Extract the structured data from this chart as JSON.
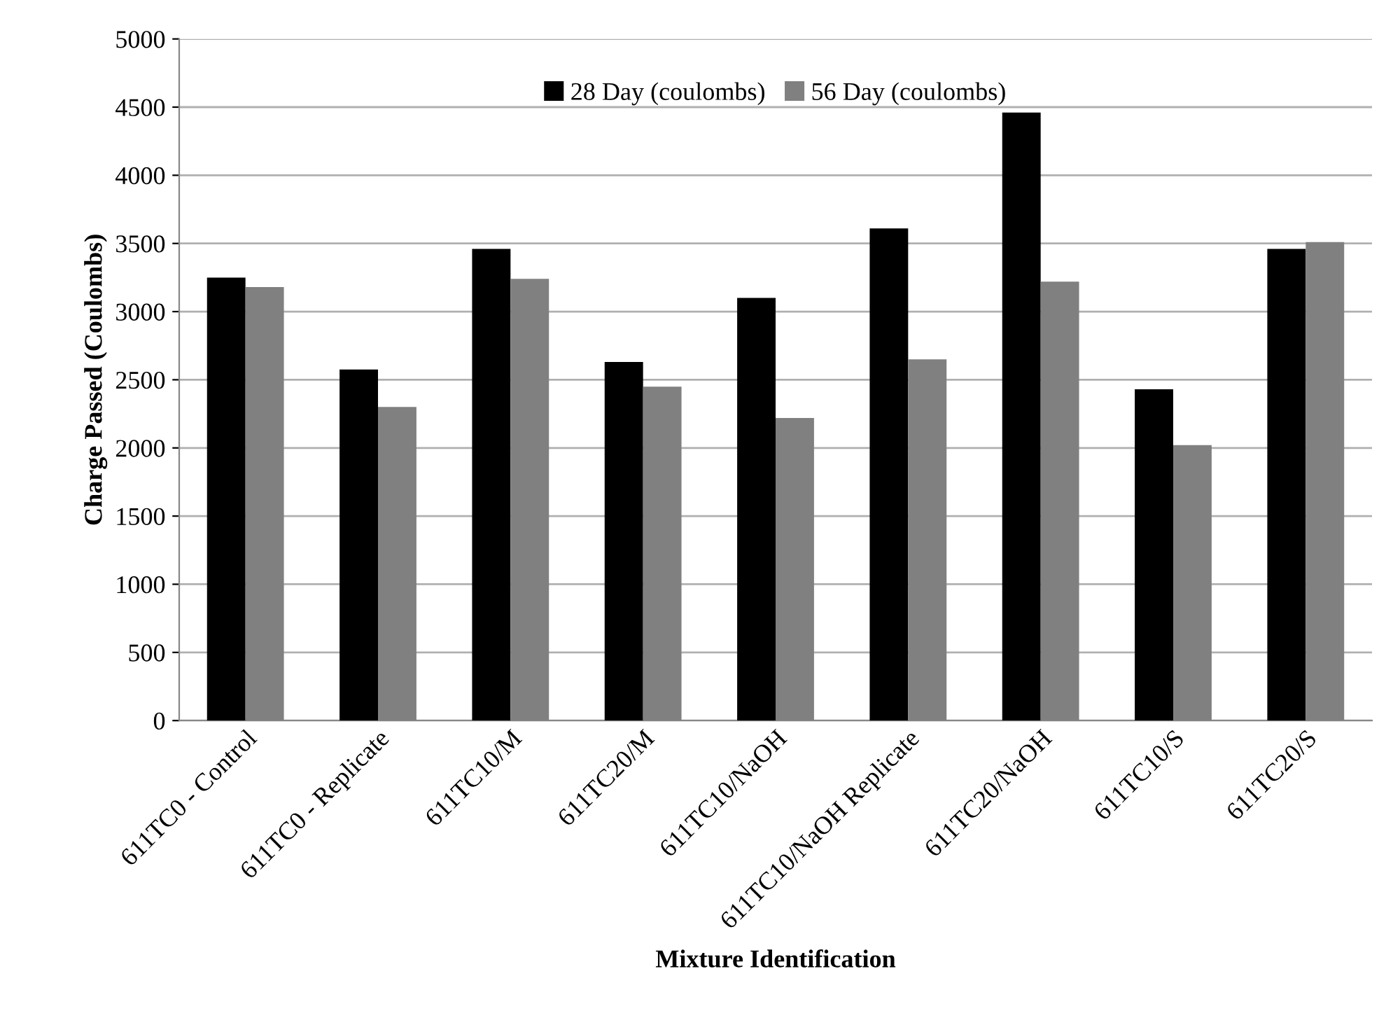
{
  "chart_data": {
    "type": "bar",
    "xlabel": "Mixture Identification",
    "ylabel": "Charge Passed (Coulombs)",
    "categories": [
      "611TC0 - Control",
      "611TC0 - Replicate",
      "611TC10/M",
      "611TC20/M",
      "611TC10/NaOH",
      "611TC10/NaOH Replicate",
      "611TC20/NaOH",
      "611TC10/S",
      "611TC20/S"
    ],
    "series": [
      {
        "name": "28 Day (coulombs)",
        "color": "#000000",
        "values": [
          3250,
          2575,
          3460,
          2630,
          3100,
          3610,
          4460,
          2430,
          3460
        ]
      },
      {
        "name": "56 Day (coulombs)",
        "color": "#808080",
        "values": [
          3180,
          2300,
          3240,
          2450,
          2220,
          2650,
          3220,
          2020,
          3510
        ]
      }
    ],
    "ylim": [
      0,
      5000
    ],
    "yticks": [
      0,
      500,
      1000,
      1500,
      2000,
      2500,
      3000,
      3500,
      4000,
      4500,
      5000
    ],
    "grid": "y",
    "legend": "top"
  }
}
